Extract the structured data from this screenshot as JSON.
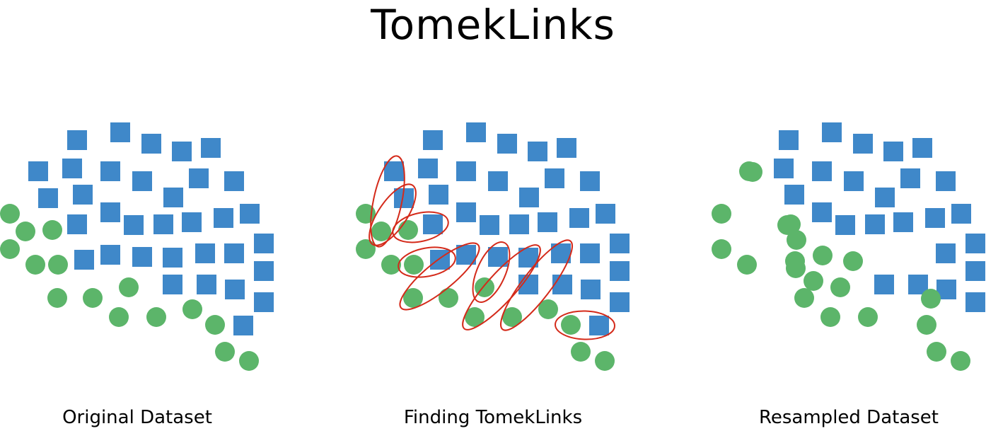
{
  "title": "TomekLinks",
  "panels": [
    {
      "label": "Original Dataset"
    },
    {
      "label": "Finding TomekLinks"
    },
    {
      "label": "Resampled Dataset"
    }
  ],
  "colors": {
    "majority_square": "#3f88c9",
    "minority_circle": "#5cb56a",
    "tomek_link": "#d42a1a"
  }
}
